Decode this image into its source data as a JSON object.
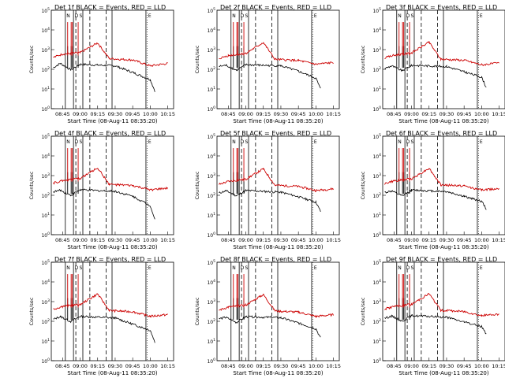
{
  "chart_data": [
    {
      "type": "line",
      "title": "Det 1f BLACK = Events, RED = LLD",
      "ylabel": "Counts/sec",
      "xlabel": "Start Time (08-Aug-11 08:35:20)",
      "xticks": [
        "08:45",
        "09:00",
        "09:15",
        "09:30",
        "09:45",
        "10:00",
        "10:15"
      ],
      "ylim": [
        1,
        100000
      ],
      "yscale": "log",
      "markers": {
        "N": "N",
        "D": "D",
        "S": "S",
        "E": "E"
      },
      "series": [
        {
          "color": "#000000",
          "values": [
            {
              "t": "08:37",
              "v": 120
            },
            {
              "t": "08:43",
              "v": 200
            },
            {
              "t": "08:52",
              "v": 95
            },
            {
              "t": "09:00",
              "v": 180
            },
            {
              "t": "09:30",
              "v": 150
            },
            {
              "t": "09:45",
              "v": 70
            },
            {
              "t": "10:00",
              "v": 30
            },
            {
              "t": "10:04",
              "v": 8
            }
          ]
        },
        {
          "color": "#cc0000",
          "values": [
            {
              "t": "08:37",
              "v": 400
            },
            {
              "t": "08:45",
              "v": 600
            },
            {
              "t": "09:00",
              "v": 700
            },
            {
              "t": "09:15",
              "v": 2200
            },
            {
              "t": "09:25",
              "v": 350
            },
            {
              "t": "09:45",
              "v": 300
            },
            {
              "t": "10:00",
              "v": 150
            },
            {
              "t": "10:15",
              "v": 200
            }
          ]
        }
      ]
    },
    {
      "type": "line",
      "title": "Det 2f BLACK = Events, RED = LLD",
      "ylabel": "Counts/sec",
      "xlabel": "Start Time (08-Aug-11 08:35:20)",
      "xticks": [
        "08:45",
        "09:00",
        "09:15",
        "09:30",
        "09:45",
        "10:00",
        "10:15"
      ],
      "ylim": [
        1,
        100000
      ],
      "yscale": "log",
      "markers": {
        "N": "N",
        "D": "D",
        "S": "S",
        "E": "E"
      },
      "series": [
        {
          "color": "#000000",
          "values": [
            {
              "t": "08:37",
              "v": 140
            },
            {
              "t": "08:43",
              "v": 160
            },
            {
              "t": "08:52",
              "v": 90
            },
            {
              "t": "09:00",
              "v": 170
            },
            {
              "t": "09:30",
              "v": 150
            },
            {
              "t": "09:45",
              "v": 80
            },
            {
              "t": "10:00",
              "v": 35
            },
            {
              "t": "10:04",
              "v": 10
            }
          ]
        },
        {
          "color": "#cc0000",
          "values": [
            {
              "t": "08:37",
              "v": 350
            },
            {
              "t": "08:45",
              "v": 500
            },
            {
              "t": "09:00",
              "v": 650
            },
            {
              "t": "09:15",
              "v": 2300
            },
            {
              "t": "09:25",
              "v": 320
            },
            {
              "t": "09:45",
              "v": 280
            },
            {
              "t": "10:00",
              "v": 180
            },
            {
              "t": "10:15",
              "v": 220
            }
          ]
        }
      ]
    },
    {
      "type": "line",
      "title": "Det 3f BLACK = Events, RED = LLD",
      "ylabel": "Counts/sec",
      "xlabel": "Start Time (08-Aug-11 08:35:20)",
      "xticks": [
        "08:45",
        "09:00",
        "09:15",
        "09:30",
        "09:45",
        "10:00",
        "10:15"
      ],
      "ylim": [
        1,
        100000
      ],
      "yscale": "log",
      "markers": {
        "N": "N",
        "D": "D",
        "S": "S",
        "E": "E"
      },
      "series": [
        {
          "color": "#000000",
          "values": [
            {
              "t": "08:37",
              "v": 110
            },
            {
              "t": "08:43",
              "v": 150
            },
            {
              "t": "08:52",
              "v": 85
            },
            {
              "t": "09:00",
              "v": 160
            },
            {
              "t": "09:30",
              "v": 140
            },
            {
              "t": "09:45",
              "v": 75
            },
            {
              "t": "10:00",
              "v": 40
            },
            {
              "t": "10:04",
              "v": 12
            }
          ]
        },
        {
          "color": "#cc0000",
          "values": [
            {
              "t": "08:37",
              "v": 380
            },
            {
              "t": "08:45",
              "v": 520
            },
            {
              "t": "09:00",
              "v": 680
            },
            {
              "t": "09:15",
              "v": 2400
            },
            {
              "t": "09:25",
              "v": 330
            },
            {
              "t": "09:45",
              "v": 290
            },
            {
              "t": "10:00",
              "v": 170
            },
            {
              "t": "10:15",
              "v": 210
            }
          ]
        }
      ]
    },
    {
      "type": "line",
      "title": "Det 4f BLACK = Events, RED = LLD",
      "ylabel": "Counts/sec",
      "xlabel": "Start Time (08-Aug-11 08:35:20)",
      "xticks": [
        "08:45",
        "09:00",
        "09:15",
        "09:30",
        "09:45",
        "10:00",
        "10:15"
      ],
      "ylim": [
        1,
        100000
      ],
      "yscale": "log",
      "markers": {
        "N": "N",
        "D": "D",
        "S": "S",
        "E": "E"
      },
      "series": [
        {
          "color": "#000000",
          "values": [
            {
              "t": "08:37",
              "v": 150
            },
            {
              "t": "08:43",
              "v": 180
            },
            {
              "t": "08:52",
              "v": 100
            },
            {
              "t": "09:00",
              "v": 190
            },
            {
              "t": "09:30",
              "v": 160
            },
            {
              "t": "09:45",
              "v": 90
            },
            {
              "t": "10:00",
              "v": 30
            },
            {
              "t": "10:04",
              "v": 6
            }
          ]
        },
        {
          "color": "#cc0000",
          "values": [
            {
              "t": "08:37",
              "v": 420
            },
            {
              "t": "08:45",
              "v": 560
            },
            {
              "t": "09:00",
              "v": 720
            },
            {
              "t": "09:15",
              "v": 2500
            },
            {
              "t": "09:25",
              "v": 360
            },
            {
              "t": "09:45",
              "v": 310
            },
            {
              "t": "10:00",
              "v": 190
            },
            {
              "t": "10:15",
              "v": 230
            }
          ]
        }
      ]
    },
    {
      "type": "line",
      "title": "Det 5f BLACK = Events, RED = LLD",
      "ylabel": "Counts/sec",
      "xlabel": "Start Time (08-Aug-11 08:35:20)",
      "xticks": [
        "08:45",
        "09:00",
        "09:15",
        "09:30",
        "09:45",
        "10:00",
        "10:15"
      ],
      "ylim": [
        1,
        100000
      ],
      "yscale": "log",
      "markers": {
        "N": "N",
        "D": "D",
        "S": "S",
        "E": "E"
      },
      "series": [
        {
          "color": "#000000",
          "values": [
            {
              "t": "08:37",
              "v": 130
            },
            {
              "t": "08:43",
              "v": 170
            },
            {
              "t": "08:52",
              "v": 95
            },
            {
              "t": "09:00",
              "v": 175
            },
            {
              "t": "09:30",
              "v": 145
            },
            {
              "t": "09:45",
              "v": 85
            },
            {
              "t": "10:00",
              "v": 45
            },
            {
              "t": "10:04",
              "v": 15
            }
          ]
        },
        {
          "color": "#cc0000",
          "values": [
            {
              "t": "08:37",
              "v": 360
            },
            {
              "t": "08:45",
              "v": 510
            },
            {
              "t": "09:00",
              "v": 660
            },
            {
              "t": "09:15",
              "v": 2200
            },
            {
              "t": "09:25",
              "v": 325
            },
            {
              "t": "09:45",
              "v": 285
            },
            {
              "t": "10:00",
              "v": 175
            },
            {
              "t": "10:15",
              "v": 215
            }
          ]
        }
      ]
    },
    {
      "type": "line",
      "title": "Det 6f BLACK = Events, RED = LLD",
      "ylabel": "Counts/sec",
      "xlabel": "Start Time (08-Aug-11 08:35:20)",
      "xticks": [
        "08:45",
        "09:00",
        "09:15",
        "09:30",
        "09:45",
        "10:00",
        "10:15"
      ],
      "ylim": [
        1,
        100000
      ],
      "yscale": "log",
      "markers": {
        "N": "N",
        "D": "D",
        "S": "S",
        "E": "E"
      },
      "series": [
        {
          "color": "#000000",
          "values": [
            {
              "t": "08:37",
              "v": 140
            },
            {
              "t": "08:43",
              "v": 165
            },
            {
              "t": "08:52",
              "v": 92
            },
            {
              "t": "09:00",
              "v": 185
            },
            {
              "t": "09:30",
              "v": 155
            },
            {
              "t": "09:45",
              "v": 88
            },
            {
              "t": "10:00",
              "v": 50
            },
            {
              "t": "10:04",
              "v": 20
            }
          ]
        },
        {
          "color": "#cc0000",
          "values": [
            {
              "t": "08:37",
              "v": 390
            },
            {
              "t": "08:45",
              "v": 540
            },
            {
              "t": "09:00",
              "v": 690
            },
            {
              "t": "09:15",
              "v": 2350
            },
            {
              "t": "09:25",
              "v": 340
            },
            {
              "t": "09:45",
              "v": 300
            },
            {
              "t": "10:00",
              "v": 185
            },
            {
              "t": "10:15",
              "v": 225
            }
          ]
        }
      ]
    },
    {
      "type": "line",
      "title": "Det 7f BLACK = Events, RED = LLD",
      "ylabel": "Counts/sec",
      "xlabel": "Start Time (08-Aug-11 08:35:20)",
      "xticks": [
        "08:45",
        "09:00",
        "09:15",
        "09:30",
        "09:45",
        "10:00",
        "10:15"
      ],
      "ylim": [
        1,
        100000
      ],
      "yscale": "log",
      "markers": {
        "N": "N",
        "D": "D",
        "S": "S",
        "E": "E"
      },
      "series": [
        {
          "color": "#000000",
          "values": [
            {
              "t": "08:37",
              "v": 125
            },
            {
              "t": "08:43",
              "v": 175
            },
            {
              "t": "08:52",
              "v": 98
            },
            {
              "t": "09:00",
              "v": 178
            },
            {
              "t": "09:30",
              "v": 148
            },
            {
              "t": "09:45",
              "v": 72
            },
            {
              "t": "10:00",
              "v": 35
            },
            {
              "t": "10:04",
              "v": 9
            }
          ]
        },
        {
          "color": "#cc0000",
          "values": [
            {
              "t": "08:37",
              "v": 410
            },
            {
              "t": "08:45",
              "v": 580
            },
            {
              "t": "09:00",
              "v": 710
            },
            {
              "t": "09:15",
              "v": 2450
            },
            {
              "t": "09:25",
              "v": 355
            },
            {
              "t": "09:45",
              "v": 305
            },
            {
              "t": "10:00",
              "v": 180
            },
            {
              "t": "10:15",
              "v": 220
            }
          ]
        }
      ]
    },
    {
      "type": "line",
      "title": "Det 8f BLACK = Events, RED = LLD",
      "ylabel": "Counts/sec",
      "xlabel": "Start Time (08-Aug-11 08:35:20)",
      "xticks": [
        "08:45",
        "09:00",
        "09:15",
        "09:30",
        "09:45",
        "10:00",
        "10:15"
      ],
      "ylim": [
        1,
        100000
      ],
      "yscale": "log",
      "markers": {
        "N": "N",
        "D": "D",
        "S": "S",
        "E": "E"
      },
      "series": [
        {
          "color": "#000000",
          "values": [
            {
              "t": "08:37",
              "v": 135
            },
            {
              "t": "08:43",
              "v": 158
            },
            {
              "t": "08:52",
              "v": 88
            },
            {
              "t": "09:00",
              "v": 172
            },
            {
              "t": "09:30",
              "v": 152
            },
            {
              "t": "09:45",
              "v": 82
            },
            {
              "t": "10:00",
              "v": 42
            },
            {
              "t": "10:04",
              "v": 14
            }
          ]
        },
        {
          "color": "#cc0000",
          "values": [
            {
              "t": "08:37",
              "v": 370
            },
            {
              "t": "08:45",
              "v": 530
            },
            {
              "t": "09:00",
              "v": 670
            },
            {
              "t": "09:15",
              "v": 2300
            },
            {
              "t": "09:25",
              "v": 335
            },
            {
              "t": "09:45",
              "v": 295
            },
            {
              "t": "10:00",
              "v": 178
            },
            {
              "t": "10:15",
              "v": 218
            }
          ]
        }
      ]
    },
    {
      "type": "line",
      "title": "Det 9f BLACK = Events, RED = LLD",
      "ylabel": "Counts/sec",
      "xlabel": "Start Time (08-Aug-11 08:35:20)",
      "xticks": [
        "08:45",
        "09:00",
        "09:15",
        "09:30",
        "09:45",
        "10:00",
        "10:15"
      ],
      "ylim": [
        1,
        100000
      ],
      "yscale": "log",
      "markers": {
        "N": "N",
        "D": "D",
        "S": "S",
        "E": "E"
      },
      "series": [
        {
          "color": "#000000",
          "values": [
            {
              "t": "08:37",
              "v": 145
            },
            {
              "t": "08:43",
              "v": 185
            },
            {
              "t": "08:52",
              "v": 102
            },
            {
              "t": "09:00",
              "v": 195
            },
            {
              "t": "09:30",
              "v": 162
            },
            {
              "t": "09:45",
              "v": 92
            },
            {
              "t": "10:00",
              "v": 55
            },
            {
              "t": "10:04",
              "v": 22
            }
          ]
        },
        {
          "color": "#cc0000",
          "values": [
            {
              "t": "08:37",
              "v": 430
            },
            {
              "t": "08:45",
              "v": 570
            },
            {
              "t": "09:00",
              "v": 730
            },
            {
              "t": "09:15",
              "v": 2550
            },
            {
              "t": "09:25",
              "v": 365
            },
            {
              "t": "09:45",
              "v": 315
            },
            {
              "t": "10:00",
              "v": 195
            },
            {
              "t": "10:15",
              "v": 235
            }
          ]
        }
      ]
    }
  ]
}
